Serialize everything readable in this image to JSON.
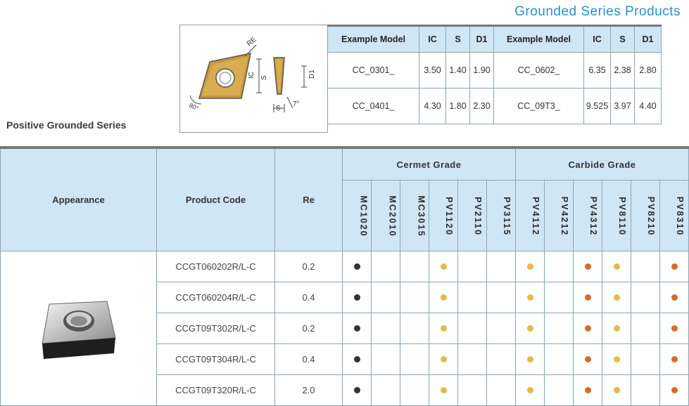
{
  "header": {
    "title": "Grounded Series Products"
  },
  "series_title": "Positive Grounded Series",
  "diagram": {
    "labels": {
      "re": "RE",
      "ic": "IC",
      "s": "S",
      "d1": "D1",
      "angle1": "80°",
      "angle2": "7°"
    }
  },
  "spec_table": {
    "headers": [
      "Example Model",
      "IC",
      "S",
      "D1",
      "Example Model",
      "IC",
      "S",
      "D1"
    ],
    "rows": [
      [
        "CC_0301_",
        "3.50",
        "1.40",
        "1.90",
        "CC_0602_",
        "6.35",
        "2.38",
        "2.80"
      ],
      [
        "CC_0401_",
        "4.30",
        "1.80",
        "2.30",
        "CC_09T3_",
        "9.525",
        "3.97",
        "4.40"
      ]
    ]
  },
  "main_table": {
    "headers": {
      "appearance": "Appearance",
      "product_code": "Product Code",
      "re": "Re"
    },
    "group_headers": [
      "Cermet Grade",
      "Carbide Grade"
    ],
    "grades": [
      "MC1020",
      "MC2010",
      "MC3015",
      "PV1120",
      "PV2110",
      "PV3115",
      "PV4112",
      "PV4212",
      "PV4312",
      "PV8110",
      "PV8210",
      "PV8310"
    ],
    "colors": {
      "black": "#333333",
      "yellow": "#e8b94a",
      "orange": "#d96a2c"
    },
    "rows": [
      {
        "code": "CCGT060202R/L-C",
        "re": "0.2",
        "marks": [
          "black",
          "",
          "",
          "yellow",
          "",
          "",
          "yellow",
          "",
          "orange",
          "yellow",
          "",
          "orange"
        ]
      },
      {
        "code": "CCGT060204R/L-C",
        "re": "0.4",
        "marks": [
          "black",
          "",
          "",
          "yellow",
          "",
          "",
          "yellow",
          "",
          "orange",
          "yellow",
          "",
          "orange"
        ]
      },
      {
        "code": "CCGT09T302R/L-C",
        "re": "0.2",
        "marks": [
          "black",
          "",
          "",
          "yellow",
          "",
          "",
          "yellow",
          "",
          "orange",
          "yellow",
          "",
          "orange"
        ]
      },
      {
        "code": "CCGT09T304R/L-C",
        "re": "0.4",
        "marks": [
          "black",
          "",
          "",
          "yellow",
          "",
          "",
          "yellow",
          "",
          "orange",
          "yellow",
          "",
          "orange"
        ]
      },
      {
        "code": "CCGT09T320R/L-C",
        "re": "2.0",
        "marks": [
          "black",
          "",
          "",
          "yellow",
          "",
          "",
          "yellow",
          "",
          "orange",
          "yellow",
          "",
          "orange"
        ]
      }
    ]
  }
}
